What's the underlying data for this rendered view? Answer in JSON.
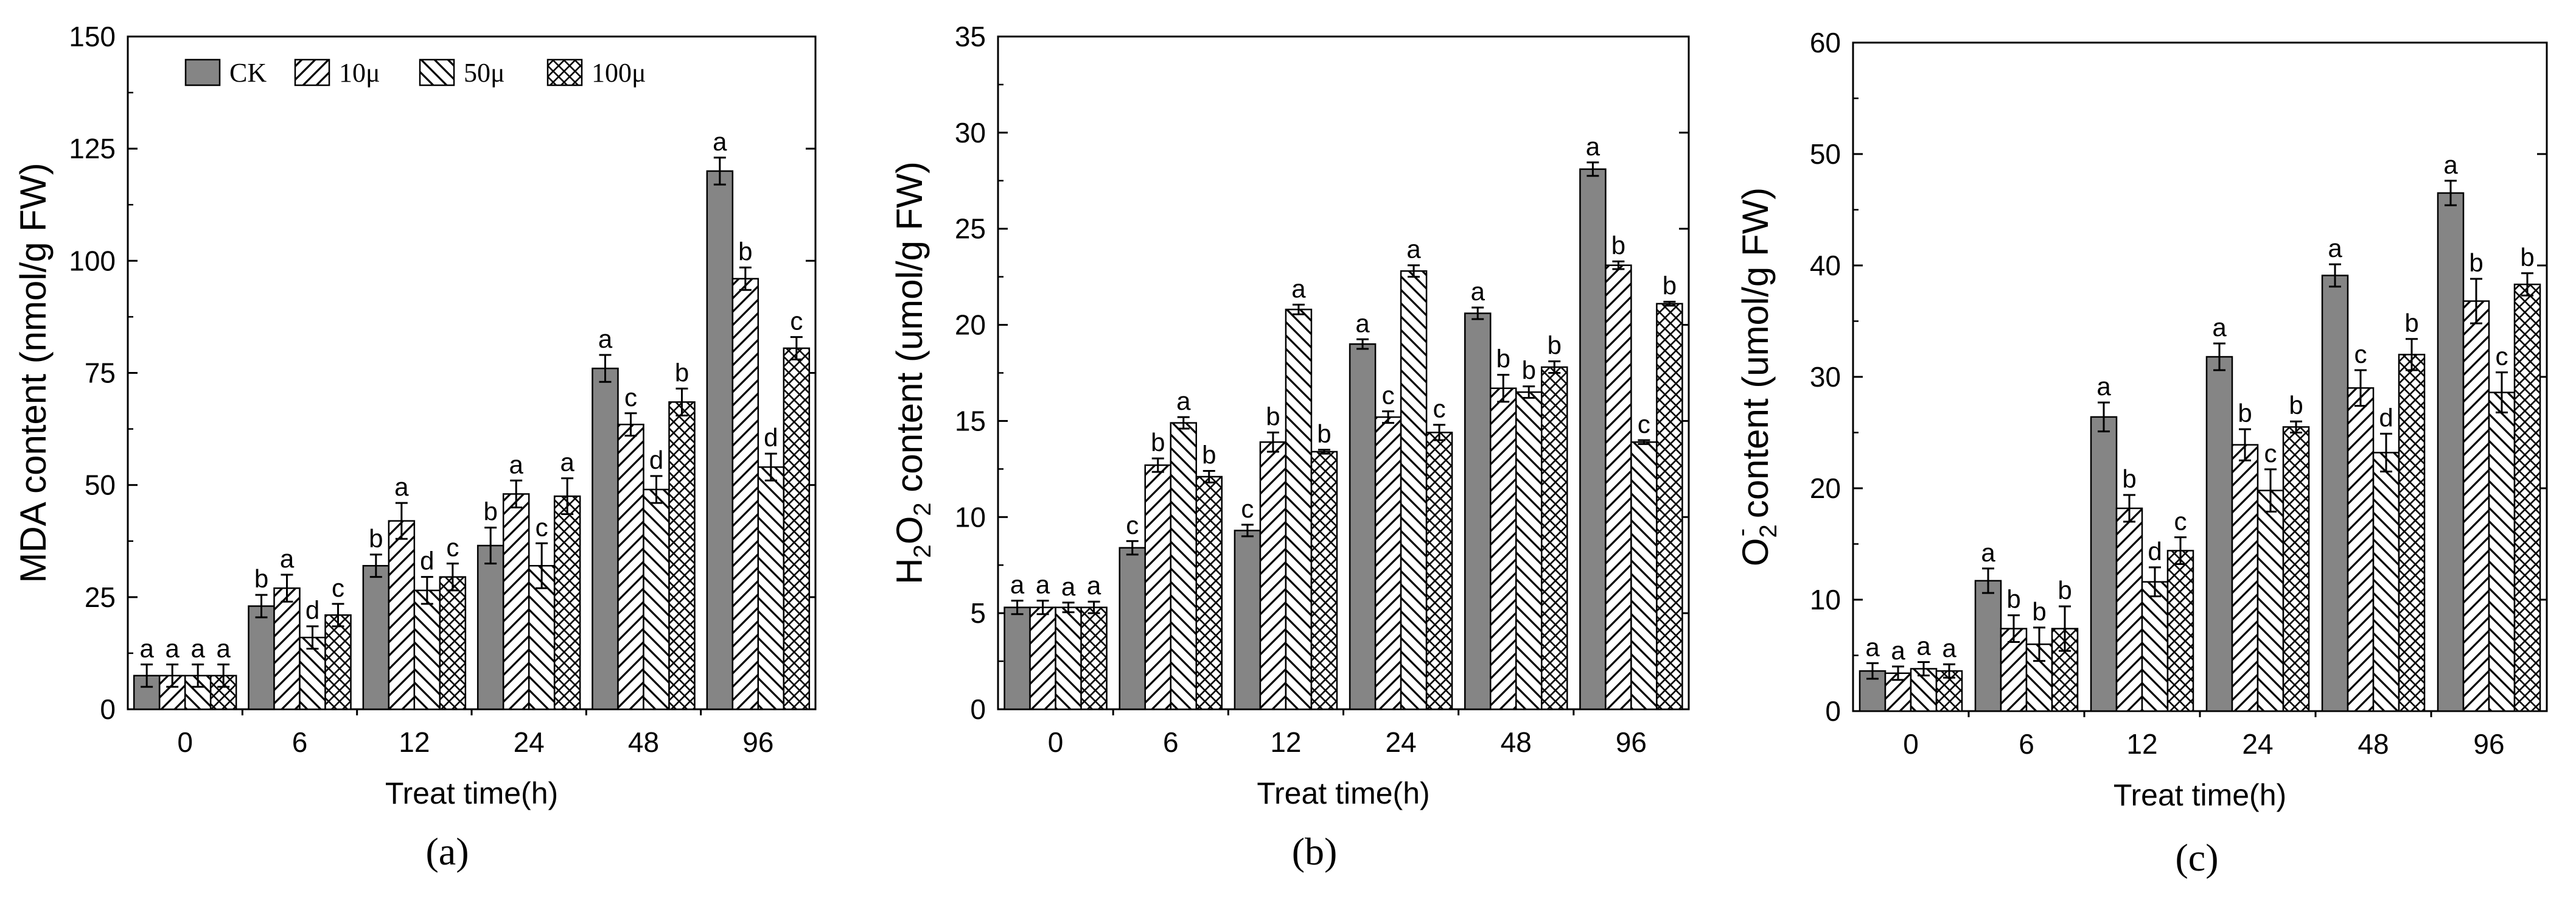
{
  "legend": {
    "entries": [
      "CK",
      "10μ",
      "50μ",
      "100μ"
    ],
    "placement": "top-left of panel (a)"
  },
  "colors": {
    "bar_fill": "#858585",
    "bar_stroke": "#000000",
    "background": "#ffffff"
  },
  "chart_data": [
    {
      "type": "bar",
      "panel": "(a)",
      "xlabel": "Treat time(h)",
      "ylabel": "MDA content (nmol/g FW)",
      "ylim": [
        0,
        150
      ],
      "yticks": [
        0,
        25,
        50,
        75,
        100,
        125,
        150
      ],
      "categories": [
        "0",
        "6",
        "12",
        "24",
        "48",
        "96"
      ],
      "series": [
        {
          "name": "CK",
          "values": [
            7.5,
            23,
            32,
            36.5,
            76,
            120
          ],
          "errors": [
            2.5,
            2.5,
            2.5,
            4,
            3,
            3
          ],
          "letters": [
            "a",
            "b",
            "b",
            "b",
            "a",
            "a"
          ]
        },
        {
          "name": "10μ",
          "values": [
            7.5,
            27,
            42,
            48,
            63.5,
            96
          ],
          "errors": [
            2.5,
            3,
            4,
            3,
            2.5,
            2.5
          ],
          "letters": [
            "a",
            "a",
            "a",
            "a",
            "c",
            "b"
          ]
        },
        {
          "name": "50μ",
          "values": [
            7.5,
            16,
            26.5,
            32,
            49,
            54
          ],
          "errors": [
            2.5,
            2.5,
            3,
            5,
            3,
            3
          ],
          "letters": [
            "a",
            "d",
            "d",
            "c",
            "d",
            "d"
          ]
        },
        {
          "name": "100μ",
          "values": [
            7.5,
            21,
            29.5,
            47.5,
            68.5,
            80.5
          ],
          "errors": [
            2.5,
            2.5,
            3,
            4,
            3,
            2.5
          ],
          "letters": [
            "a",
            "c",
            "c",
            "a",
            "b",
            "c"
          ]
        }
      ]
    },
    {
      "type": "bar",
      "panel": "(b)",
      "xlabel": "Treat time(h)",
      "ylabel": "H2O2 content (umol/g FW)",
      "ylim": [
        0,
        35
      ],
      "yticks": [
        0,
        5,
        10,
        15,
        20,
        25,
        30,
        35
      ],
      "categories": [
        "0",
        "6",
        "12",
        "24",
        "48",
        "96"
      ],
      "series": [
        {
          "name": "CK",
          "values": [
            5.3,
            8.4,
            9.3,
            19,
            20.6,
            28.1
          ],
          "errors": [
            0.35,
            0.35,
            0.3,
            0.25,
            0.3,
            0.35
          ],
          "letters": [
            "a",
            "c",
            "c",
            "a",
            "a",
            "a"
          ]
        },
        {
          "name": "10μ",
          "values": [
            5.3,
            12.7,
            13.9,
            15.2,
            16.7,
            23.1
          ],
          "errors": [
            0.35,
            0.35,
            0.5,
            0.3,
            0.7,
            0.2
          ],
          "letters": [
            "a",
            "b",
            "b",
            "c",
            "b",
            "b"
          ]
        },
        {
          "name": "50μ",
          "values": [
            5.3,
            14.9,
            20.8,
            22.8,
            16.5,
            13.9
          ],
          "errors": [
            0.25,
            0.3,
            0.25,
            0.3,
            0.3,
            0.1
          ],
          "letters": [
            "a",
            "a",
            "a",
            "a",
            "b",
            "c"
          ]
        },
        {
          "name": "100μ",
          "values": [
            5.3,
            12.1,
            13.4,
            14.4,
            17.8,
            21.1
          ],
          "errors": [
            0.3,
            0.3,
            0.1,
            0.4,
            0.3,
            0.1
          ],
          "letters": [
            "a",
            "b",
            "b",
            "c",
            "b",
            "b"
          ]
        }
      ]
    },
    {
      "type": "bar",
      "panel": "(c)",
      "xlabel": "Treat time(h)",
      "ylabel": "O2- content (umol/g FW)",
      "ylim": [
        0,
        60
      ],
      "yticks": [
        0,
        10,
        20,
        30,
        40,
        50,
        60
      ],
      "categories": [
        "0",
        "6",
        "12",
        "24",
        "48",
        "96"
      ],
      "series": [
        {
          "name": "CK",
          "values": [
            3.6,
            11.7,
            26.4,
            31.8,
            39.1,
            46.5
          ],
          "errors": [
            0.7,
            1.1,
            1.3,
            1.2,
            1,
            1.1
          ],
          "letters": [
            "a",
            "a",
            "a",
            "a",
            "a",
            "a"
          ]
        },
        {
          "name": "10μ",
          "values": [
            3.4,
            7.4,
            18.2,
            23.9,
            29,
            36.8
          ],
          "errors": [
            0.6,
            1.2,
            1.2,
            1.4,
            1.6,
            2
          ],
          "letters": [
            "a",
            "b",
            "b",
            "b",
            "c",
            "b"
          ]
        },
        {
          "name": "50μ",
          "values": [
            3.8,
            6,
            11.6,
            19.8,
            23.2,
            28.6
          ],
          "errors": [
            0.6,
            1.5,
            1.3,
            1.9,
            1.7,
            1.8
          ],
          "letters": [
            "a",
            "b",
            "d",
            "c",
            "d",
            "c"
          ]
        },
        {
          "name": "100μ",
          "values": [
            3.6,
            7.4,
            14.4,
            25.5,
            32,
            38.3
          ],
          "errors": [
            0.6,
            2,
            1.2,
            0.5,
            1.4,
            1
          ],
          "letters": [
            "a",
            "b",
            "c",
            "b",
            "b",
            "b"
          ]
        }
      ]
    }
  ],
  "captions": [
    "(a)",
    "(b)",
    "(c)"
  ]
}
